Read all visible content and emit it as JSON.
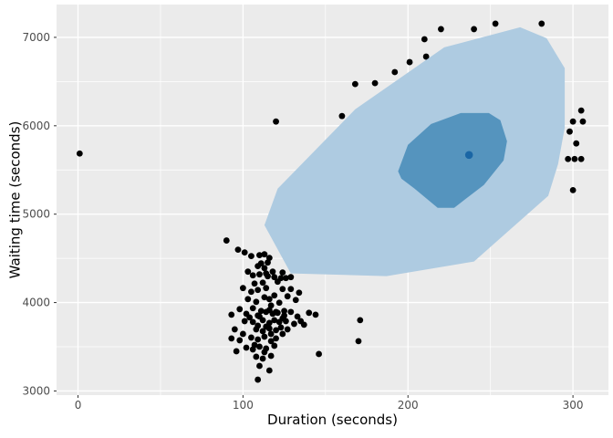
{
  "figure": {
    "kind": "ggplot-style HDR scatterplot",
    "background": "#FFFFFF"
  },
  "chart_data": {
    "type": "scatter",
    "title": "",
    "xlabel": "Duration (seconds)",
    "ylabel": "Waiting time (seconds)",
    "xlim": [
      -13,
      321.5
    ],
    "ylim": [
      2953,
      7371
    ],
    "x_ticks": [
      0,
      100,
      200,
      300
    ],
    "x_minor_ticks": [
      50,
      150,
      250
    ],
    "y_ticks": [
      3000,
      4000,
      5000,
      6000,
      7000
    ],
    "y_minor_ticks": [
      3500,
      4500,
      5500,
      6500
    ],
    "grid": "on",
    "legend": "none",
    "panel_bg": "#EBEBEB",
    "grid_color": "#FFFFFF",
    "tick_mark_color": "#333333",
    "tick_label_color": "#4D4D4D",
    "point_color": "#000000",
    "point_radius": 3.4,
    "hdr_regions": [
      {
        "name": "outer-hdr-region",
        "fill": "#AECBE1",
        "vertices": [
          [
            113,
            4876
          ],
          [
            121,
            5288
          ],
          [
            168,
            6186
          ],
          [
            222,
            6887
          ],
          [
            268,
            7114
          ],
          [
            284,
            6990
          ],
          [
            295,
            6650
          ],
          [
            295,
            5980
          ],
          [
            291,
            5568
          ],
          [
            285,
            5207
          ],
          [
            240,
            4464
          ],
          [
            187,
            4299
          ],
          [
            129,
            4330
          ]
        ]
      },
      {
        "name": "inner-hdr-region",
        "fill": "#5594BE",
        "vertices": [
          [
            194,
            5484
          ],
          [
            200,
            5783
          ],
          [
            214,
            6020
          ],
          [
            232,
            6144
          ],
          [
            249,
            6144
          ],
          [
            256,
            6062
          ],
          [
            260,
            5825
          ],
          [
            258,
            5608
          ],
          [
            246,
            5330
          ],
          [
            228,
            5072
          ],
          [
            218,
            5072
          ],
          [
            204,
            5289
          ],
          [
            196,
            5402
          ]
        ]
      }
    ],
    "mode_point": {
      "x": 237,
      "y": 5670,
      "color": "#1A66A5",
      "radius": 4.3
    },
    "points": [
      [
        1,
        5686
      ],
      [
        90,
        4702
      ],
      [
        97,
        4598
      ],
      [
        120,
        6048
      ],
      [
        160,
        6110
      ],
      [
        168,
        6472
      ],
      [
        180,
        6482
      ],
      [
        192,
        6607
      ],
      [
        201,
        6720
      ],
      [
        210,
        6979
      ],
      [
        211,
        6782
      ],
      [
        220,
        7093
      ],
      [
        240,
        7093
      ],
      [
        253,
        7155
      ],
      [
        281,
        7155
      ],
      [
        305,
        6172
      ],
      [
        300,
        6048
      ],
      [
        306,
        6048
      ],
      [
        298,
        5934
      ],
      [
        302,
        5800
      ],
      [
        297,
        5624
      ],
      [
        301,
        5624
      ],
      [
        305,
        5624
      ],
      [
        300,
        5272
      ],
      [
        171,
        3801
      ],
      [
        170,
        3563
      ],
      [
        146,
        3418
      ],
      [
        101,
        4567
      ],
      [
        105,
        4526
      ],
      [
        110,
        4536
      ],
      [
        113,
        4546
      ],
      [
        116,
        4505
      ],
      [
        115,
        4453
      ],
      [
        111,
        4443
      ],
      [
        109,
        4412
      ],
      [
        113,
        4390
      ],
      [
        103,
        4350
      ],
      [
        118,
        4350
      ],
      [
        106,
        4308
      ],
      [
        110,
        4319
      ],
      [
        114,
        4329
      ],
      [
        115,
        4298
      ],
      [
        119,
        4288
      ],
      [
        123,
        4277
      ],
      [
        126,
        4277
      ],
      [
        129,
        4288
      ],
      [
        124,
        4340
      ],
      [
        100,
        4164
      ],
      [
        105,
        4122
      ],
      [
        109,
        4143
      ],
      [
        114,
        4164
      ],
      [
        124,
        4153
      ],
      [
        129,
        4153
      ],
      [
        134,
        4112
      ],
      [
        121,
        4236
      ],
      [
        112,
        4225
      ],
      [
        107,
        4215
      ],
      [
        103,
        4039
      ],
      [
        108,
        4008
      ],
      [
        116,
        4039
      ],
      [
        119,
        4081
      ],
      [
        132,
        4029
      ],
      [
        127,
        4071
      ],
      [
        113,
        4060
      ],
      [
        122,
        3998
      ],
      [
        117,
        3967
      ],
      [
        98,
        3925
      ],
      [
        106,
        3936
      ],
      [
        111,
        3905
      ],
      [
        116,
        3915
      ],
      [
        120,
        3894
      ],
      [
        125,
        3905
      ],
      [
        102,
        3873
      ],
      [
        93,
        3863
      ],
      [
        109,
        3853
      ],
      [
        114,
        3894
      ],
      [
        118,
        3873
      ],
      [
        121,
        3884
      ],
      [
        125,
        3853
      ],
      [
        129,
        3894
      ],
      [
        140,
        3884
      ],
      [
        144,
        3863
      ],
      [
        110,
        3842
      ],
      [
        133,
        3842
      ],
      [
        104,
        3832
      ],
      [
        124,
        3821
      ],
      [
        101,
        3790
      ],
      [
        106,
        3780
      ],
      [
        112,
        3801
      ],
      [
        116,
        3770
      ],
      [
        119,
        3801
      ],
      [
        122,
        3780
      ],
      [
        126,
        3790
      ],
      [
        131,
        3759
      ],
      [
        135,
        3790
      ],
      [
        137,
        3749
      ],
      [
        95,
        3697
      ],
      [
        108,
        3697
      ],
      [
        112,
        3676
      ],
      [
        116,
        3707
      ],
      [
        120,
        3687
      ],
      [
        123,
        3718
      ],
      [
        127,
        3697
      ],
      [
        109,
        3738
      ],
      [
        114,
        3728
      ],
      [
        93,
        3594
      ],
      [
        98,
        3573
      ],
      [
        105,
        3604
      ],
      [
        109,
        3583
      ],
      [
        113,
        3614
      ],
      [
        117,
        3563
      ],
      [
        120,
        3594
      ],
      [
        124,
        3645
      ],
      [
        100,
        3645
      ],
      [
        117,
        3645
      ],
      [
        102,
        3490
      ],
      [
        106,
        3470
      ],
      [
        110,
        3501
      ],
      [
        114,
        3480
      ],
      [
        119,
        3511
      ],
      [
        107,
        3521
      ],
      [
        108,
        3387
      ],
      [
        112,
        3366
      ],
      [
        117,
        3397
      ],
      [
        96,
        3449
      ],
      [
        113,
        3439
      ],
      [
        110,
        3283
      ],
      [
        116,
        3232
      ],
      [
        109,
        3128
      ]
    ]
  }
}
